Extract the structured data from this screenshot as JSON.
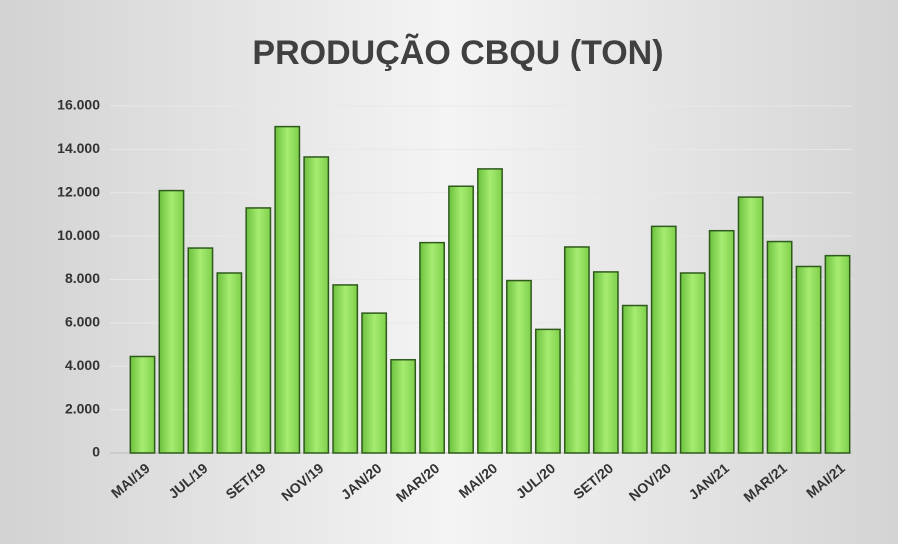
{
  "chart_data": {
    "type": "bar",
    "title": "PRODUÇÃO CBQU (TON)",
    "categories": [
      "MAI/19",
      null,
      "JUL/19",
      null,
      "SET/19",
      null,
      "NOV/19",
      null,
      "JAN/20",
      null,
      "MAR/20",
      null,
      "MAI/20",
      null,
      "JUL/20",
      null,
      "SET/20",
      null,
      "NOV/20",
      null,
      "JAN/21",
      null,
      "MAR/21",
      null,
      "MAI/21"
    ],
    "values": [
      4450,
      12100,
      9450,
      8300,
      11300,
      15050,
      13650,
      7750,
      6450,
      4300,
      9700,
      12300,
      13100,
      7950,
      5700,
      9500,
      8350,
      6800,
      10450,
      8300,
      10250,
      11800,
      9750,
      8600,
      9100
    ],
    "color": "#8fe05c",
    "ylim": [
      0,
      16000
    ],
    "yticks": [
      0,
      {
        "value": 2000,
        "label": "2.000"
      },
      {
        "value": 4000,
        "label": "4.000"
      },
      {
        "value": 6000,
        "label": "6.000"
      },
      {
        "value": 8000,
        "label": "8.000"
      },
      {
        "value": 10000,
        "label": "10.000"
      },
      {
        "value": 12000,
        "label": "12.000"
      },
      {
        "value": 14000,
        "label": "14.000"
      },
      {
        "value": 16000,
        "label": "16.000"
      }
    ],
    "grid": true
  }
}
